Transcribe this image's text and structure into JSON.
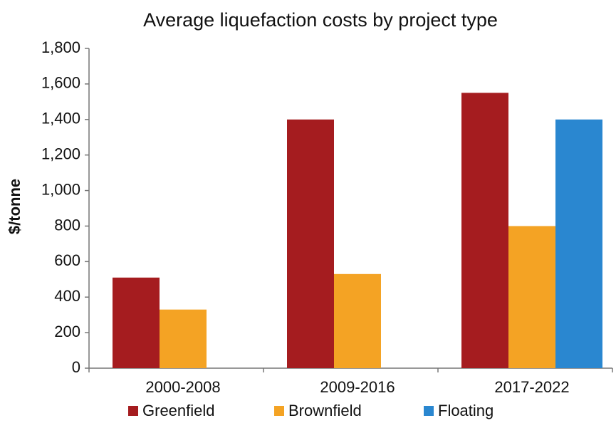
{
  "chart_data": {
    "type": "bar",
    "title": "Average liquefaction costs by project type",
    "y_label": "$/tonne",
    "categories": [
      "2000-2008",
      "2009-2016",
      "2017-2022"
    ],
    "series": [
      {
        "name": "Greenfield",
        "color": "#a51c1f",
        "values": [
          510,
          1400,
          1550
        ]
      },
      {
        "name": "Brownfield",
        "color": "#f4a324",
        "values": [
          330,
          530,
          800
        ]
      },
      {
        "name": "Floating",
        "color": "#2a87d0",
        "values": [
          null,
          null,
          1400
        ]
      }
    ],
    "ylim": [
      0,
      1800
    ],
    "yticks": [
      0,
      200,
      400,
      600,
      800,
      {
        "value": 1000,
        "label": "1,000"
      },
      {
        "value": 1200,
        "label": "1,200"
      },
      {
        "value": 1400,
        "label": "1,400"
      },
      {
        "value": 1600,
        "label": "1,600"
      },
      {
        "value": 1800,
        "label": "1,800"
      }
    ],
    "grid": false,
    "legend": "bottom"
  }
}
